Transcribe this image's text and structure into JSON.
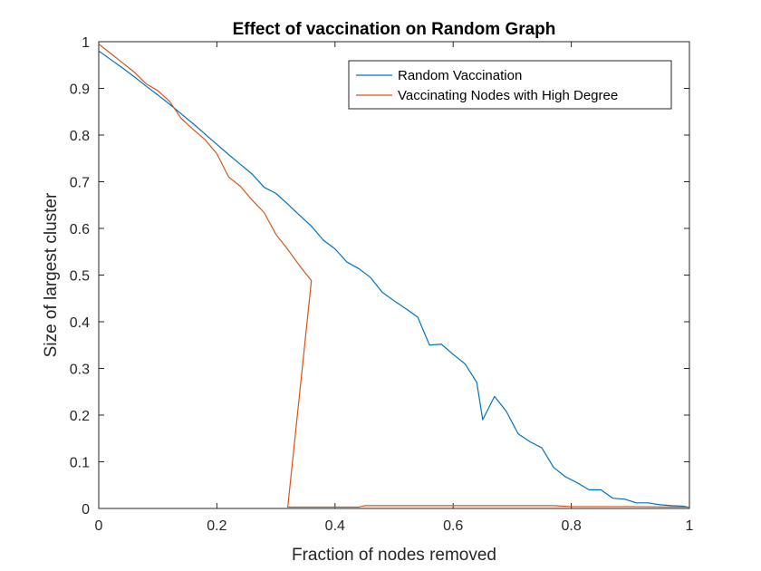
{
  "chart_data": {
    "type": "line",
    "title": "Effect of vaccination on Random Graph",
    "xlabel": "Fraction of nodes removed",
    "ylabel": "Size of largest cluster",
    "xlim": [
      0,
      1
    ],
    "ylim": [
      0,
      1
    ],
    "xticks": [
      0,
      0.2,
      0.4,
      0.6,
      0.8,
      1
    ],
    "xtick_labels": [
      "0",
      "0.2",
      "0.4",
      "0.6",
      "0.8",
      "1"
    ],
    "yticks": [
      0,
      0.1,
      0.2,
      0.3,
      0.4,
      0.5,
      0.6,
      0.7,
      0.8,
      0.9,
      1
    ],
    "ytick_labels": [
      "0",
      "0.1",
      "0.2",
      "0.3",
      "0.4",
      "0.5",
      "0.6",
      "0.7",
      "0.8",
      "0.9",
      "1"
    ],
    "grid": false,
    "legend_position": "top-right",
    "series": [
      {
        "name": "Random Vaccination",
        "color": "#0072BD",
        "points": [
          [
            0,
            0.98
          ],
          [
            0.02,
            0.962
          ],
          [
            0.04,
            0.944
          ],
          [
            0.06,
            0.925
          ],
          [
            0.08,
            0.905
          ],
          [
            0.1,
            0.886
          ],
          [
            0.12,
            0.866
          ],
          [
            0.14,
            0.845
          ],
          [
            0.16,
            0.824
          ],
          [
            0.18,
            0.802
          ],
          [
            0.2,
            0.78
          ],
          [
            0.22,
            0.758
          ],
          [
            0.24,
            0.737
          ],
          [
            0.26,
            0.716
          ],
          [
            0.28,
            0.688
          ],
          [
            0.3,
            0.675
          ],
          [
            0.32,
            0.652
          ],
          [
            0.34,
            0.628
          ],
          [
            0.36,
            0.605
          ],
          [
            0.38,
            0.575
          ],
          [
            0.4,
            0.556
          ],
          [
            0.42,
            0.528
          ],
          [
            0.44,
            0.514
          ],
          [
            0.46,
            0.495
          ],
          [
            0.48,
            0.463
          ],
          [
            0.5,
            0.445
          ],
          [
            0.52,
            0.428
          ],
          [
            0.54,
            0.41
          ],
          [
            0.56,
            0.35
          ],
          [
            0.58,
            0.352
          ],
          [
            0.6,
            0.33
          ],
          [
            0.62,
            0.31
          ],
          [
            0.64,
            0.27
          ],
          [
            0.65,
            0.19
          ],
          [
            0.67,
            0.24
          ],
          [
            0.69,
            0.208
          ],
          [
            0.71,
            0.16
          ],
          [
            0.73,
            0.143
          ],
          [
            0.75,
            0.13
          ],
          [
            0.77,
            0.088
          ],
          [
            0.79,
            0.068
          ],
          [
            0.81,
            0.055
          ],
          [
            0.83,
            0.04
          ],
          [
            0.85,
            0.04
          ],
          [
            0.87,
            0.022
          ],
          [
            0.89,
            0.02
          ],
          [
            0.91,
            0.012
          ],
          [
            0.93,
            0.012
          ],
          [
            0.95,
            0.008
          ],
          [
            0.97,
            0.006
          ],
          [
            0.99,
            0.005
          ],
          [
            1.0,
            0.002
          ]
        ]
      },
      {
        "name": "Vaccinating Nodes with High Degree",
        "color": "#D95319",
        "points": [
          [
            0,
            0.995
          ],
          [
            0.02,
            0.975
          ],
          [
            0.04,
            0.955
          ],
          [
            0.06,
            0.935
          ],
          [
            0.08,
            0.91
          ],
          [
            0.1,
            0.895
          ],
          [
            0.12,
            0.872
          ],
          [
            0.14,
            0.835
          ],
          [
            0.16,
            0.812
          ],
          [
            0.18,
            0.79
          ],
          [
            0.2,
            0.76
          ],
          [
            0.22,
            0.71
          ],
          [
            0.24,
            0.69
          ],
          [
            0.26,
            0.66
          ],
          [
            0.28,
            0.634
          ],
          [
            0.3,
            0.587
          ],
          [
            0.32,
            0.555
          ],
          [
            0.34,
            0.52
          ],
          [
            0.36,
            0.488
          ],
          [
            0.32,
            0.003
          ],
          [
            0.34,
            0.003
          ],
          [
            0.44,
            0.003
          ],
          [
            0.45,
            0.006
          ],
          [
            0.6,
            0.006
          ],
          [
            0.77,
            0.006
          ],
          [
            0.8,
            0.004
          ],
          [
            0.9,
            0.004
          ],
          [
            1.0,
            0.003
          ]
        ]
      }
    ]
  }
}
